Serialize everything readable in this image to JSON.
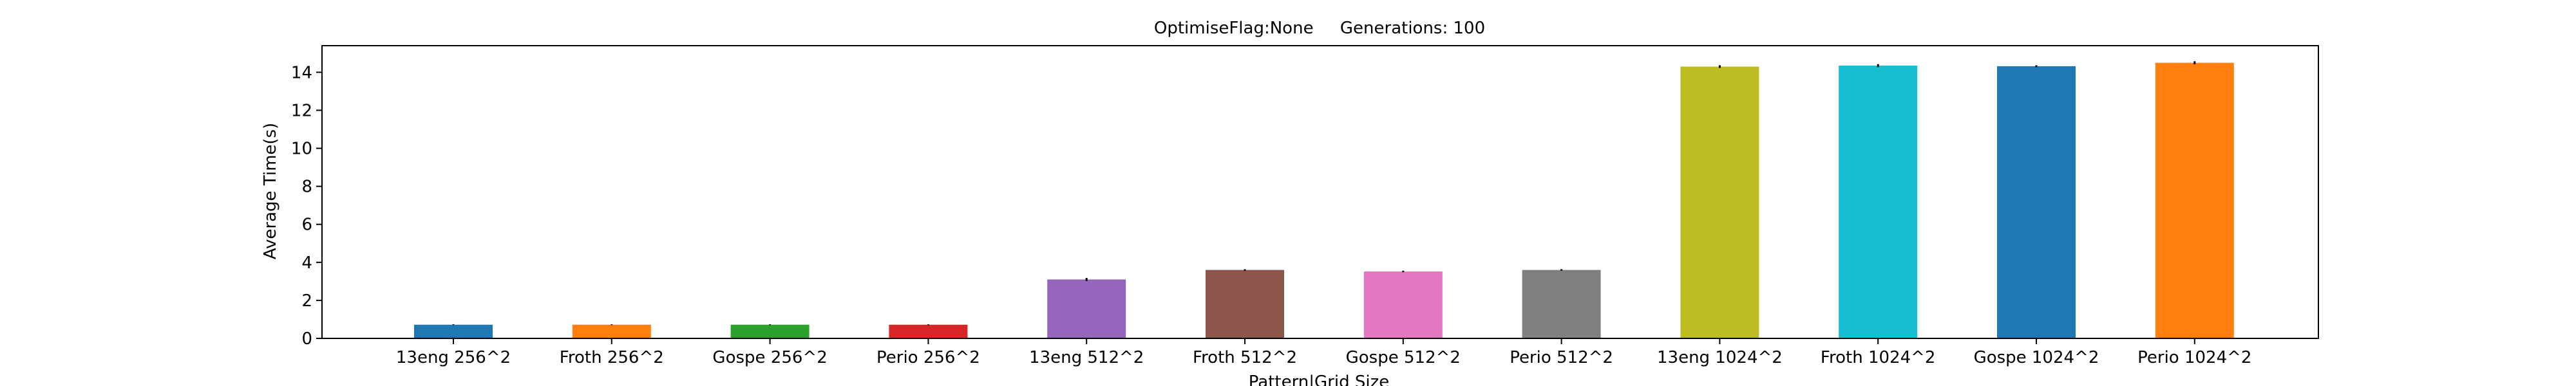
{
  "chart_data": {
    "type": "bar",
    "title": "OptimiseFlag:None     Generations: 100",
    "xlabel": "Pattern|Grid Size",
    "ylabel": "Average Time(s)",
    "ylim": [
      0,
      15.4
    ],
    "yticks": [
      "0",
      "2",
      "4",
      "6",
      "8",
      "10",
      "12",
      "14"
    ],
    "categories": [
      "13eng 256^2",
      "Froth 256^2",
      "Gospe 256^2",
      "Perio 256^2",
      "13eng 512^2",
      "Froth 512^2",
      "Gospe 512^2",
      "Perio 512^2",
      "13eng 1024^2",
      "Froth 1024^2",
      "Gospe 1024^2",
      "Perio 1024^2"
    ],
    "values": [
      0.72,
      0.72,
      0.72,
      0.72,
      3.1,
      3.6,
      3.52,
      3.6,
      14.3,
      14.35,
      14.32,
      14.5
    ],
    "errors": [
      0.02,
      0.02,
      0.02,
      0.02,
      0.08,
      0.04,
      0.04,
      0.04,
      0.07,
      0.08,
      0.05,
      0.08
    ],
    "colors": [
      "#1f77b4",
      "#ff7f0e",
      "#2ca02c",
      "#d62728",
      "#9467bd",
      "#8c564b",
      "#e377c2",
      "#7f7f7f",
      "#bcbd22",
      "#17becf",
      "#1f77b4",
      "#ff7f0e"
    ],
    "grid": false,
    "legend": "none"
  }
}
